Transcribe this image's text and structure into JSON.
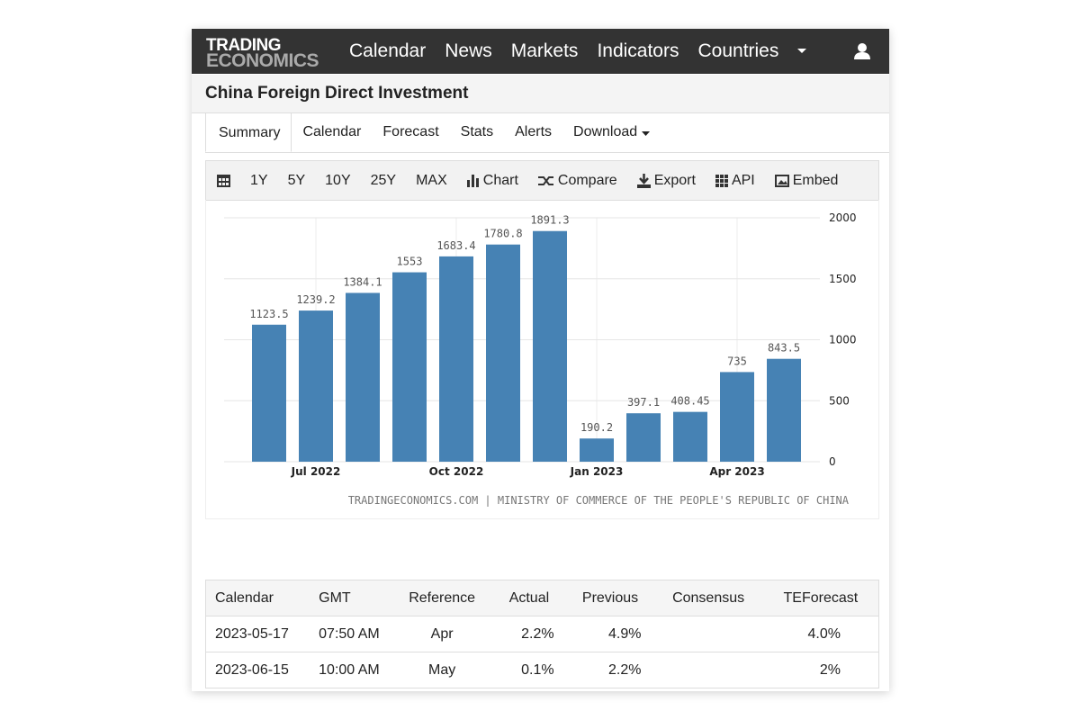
{
  "brand": {
    "line1": "TRADING",
    "line2": "ECONOMICS"
  },
  "nav": [
    "Calendar",
    "News",
    "Markets",
    "Indicators",
    "Countries"
  ],
  "page_title": "China Foreign Direct Investment",
  "tabs": [
    "Summary",
    "Calendar",
    "Forecast",
    "Stats",
    "Alerts",
    "Download"
  ],
  "toolbar": {
    "ranges": [
      "1Y",
      "5Y",
      "10Y",
      "25Y",
      "MAX"
    ],
    "chart": "Chart",
    "compare": "Compare",
    "export": "Export",
    "api": "API",
    "embed": "Embed"
  },
  "chart_data": {
    "type": "bar",
    "categories": [
      null,
      "Jul 2022",
      null,
      null,
      "Oct 2022",
      null,
      null,
      "Jan 2023",
      null,
      null,
      "Apr 2023",
      null
    ],
    "values": [
      1123.5,
      1239.2,
      1384.1,
      1553,
      1683.4,
      1780.8,
      1891.3,
      190.2,
      397.1,
      408.45,
      735,
      843.5
    ],
    "color": "#4682b4",
    "ylim": [
      0,
      2000
    ],
    "yticks": [
      0,
      500,
      1000,
      1500,
      2000
    ],
    "grid": true,
    "source": "TRADINGECONOMICS.COM | MINISTRY OF COMMERCE OF THE PEOPLE'S REPUBLIC OF CHINA"
  },
  "table": {
    "headers": [
      "Calendar",
      "GMT",
      "Reference",
      "Actual",
      "Previous",
      "Consensus",
      "TEForecast"
    ],
    "rows": [
      {
        "calendar": "2023-05-17",
        "gmt": "07:50 AM",
        "reference": "Apr",
        "actual": "2.2%",
        "previous": "4.9%",
        "teforecast": "4.0%"
      },
      {
        "calendar": "2023-06-15",
        "gmt": "10:00 AM",
        "reference": "May",
        "actual": "0.1%",
        "previous": "2.2%",
        "teforecast": "2%"
      }
    ]
  }
}
